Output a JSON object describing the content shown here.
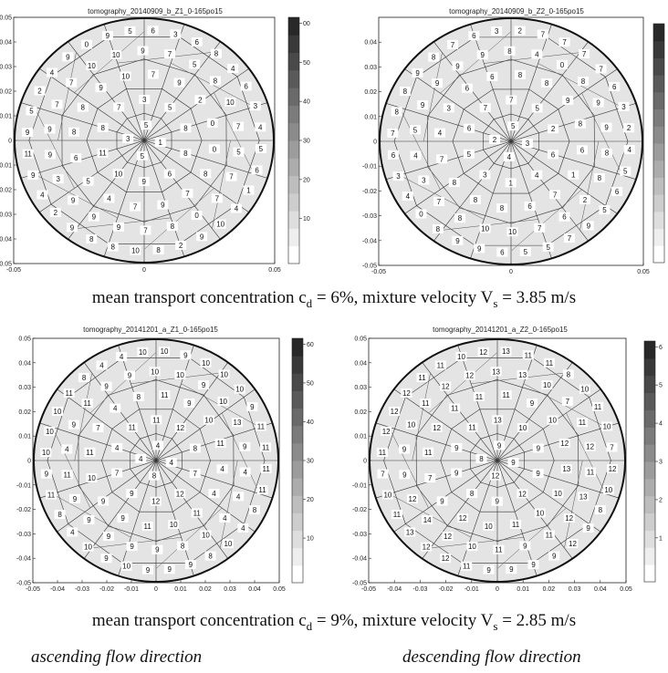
{
  "captions": {
    "row1_prefix": "mean transport concentration c",
    "row1_sub": "d",
    "row1_mid": " =  6%, mixture velocity V",
    "row1_sub2": "s",
    "row1_suffix": " = 3.85 m/s",
    "row2_prefix": "mean transport concentration c",
    "row2_sub": "d",
    "row2_mid": " =  9%, mixture velocity V",
    "row2_sub2": "s",
    "row2_suffix": " = 2.85 m/s"
  },
  "directions": {
    "left": "ascending flow direction",
    "right": "descending flow direction"
  },
  "chart_data": [
    {
      "type": "heatmap",
      "title": "tomography_20140909_b_Z1_0-165po15",
      "xlabel": "",
      "ylabel": "",
      "xlim": [
        -0.05,
        0.05
      ],
      "ylim": [
        -0.05,
        0.05
      ],
      "x_ticks": [
        "-0.05",
        "0",
        "0.05"
      ],
      "y_ticks": [
        "0.05",
        "0.04",
        "0.03",
        "0.02",
        "0.01",
        "0",
        "-0.01",
        "-0.02",
        "-0.03",
        "-0.04",
        "-0.05"
      ],
      "colorbar": {
        "range": [
          0,
          60
        ],
        "ticks": [
          "00",
          "50",
          "40",
          "30",
          "20",
          "10"
        ]
      },
      "cell_values": [
        1,
        5,
        3,
        5,
        8,
        6,
        9,
        10,
        11,
        8,
        7,
        3,
        5,
        8,
        8,
        7,
        9,
        7,
        4,
        5,
        6,
        8,
        8,
        9,
        10,
        7,
        9,
        2,
        0,
        0,
        7,
        0,
        8,
        7,
        9,
        9,
        9,
        3,
        9,
        9,
        7,
        7,
        10,
        10,
        9,
        7,
        5,
        8,
        10,
        7,
        5,
        7,
        10,
        9,
        2,
        8,
        10,
        8,
        8,
        9,
        2,
        4,
        9,
        11,
        9,
        5,
        2,
        4,
        9,
        0,
        9,
        5,
        6,
        3,
        6,
        8,
        4,
        6,
        3,
        4,
        5,
        6,
        1,
        4
      ]
    },
    {
      "type": "heatmap",
      "title": "tomography_20140909_b_Z2_0-165po15",
      "xlabel": "",
      "ylabel": "",
      "xlim": [
        -0.05,
        0.05
      ],
      "ylim": [
        -0.05,
        0.05
      ],
      "x_ticks": [
        "-0.05",
        "0",
        "0.05"
      ],
      "y_ticks": [
        "0.04",
        "0.03",
        "0.02",
        "0.01",
        "0",
        "-0.01",
        "-0.02",
        "-0.03",
        "-0.04",
        "-0.05"
      ],
      "colorbar": {
        "range": [
          0,
          60
        ],
        "ticks": []
      },
      "cell_values": [
        3,
        4,
        2,
        5,
        6,
        4,
        1,
        3,
        5,
        6,
        7,
        7,
        5,
        2,
        1,
        7,
        6,
        8,
        8,
        8,
        7,
        4,
        3,
        6,
        6,
        8,
        8,
        9,
        8,
        6,
        2,
        6,
        7,
        10,
        10,
        8,
        7,
        3,
        4,
        5,
        9,
        9,
        9,
        9,
        8,
        4,
        0,
        8,
        9,
        9,
        8,
        8,
        9,
        7,
        5,
        5,
        6,
        9,
        9,
        8,
        0,
        4,
        3,
        6,
        7,
        8,
        8,
        9,
        8,
        7,
        6,
        3,
        2,
        7,
        7,
        7,
        7,
        6,
        3,
        2,
        4,
        5,
        6,
        5,
        4,
        3,
        3,
        3
      ]
    },
    {
      "type": "heatmap",
      "title": "tomography_20141201_a_Z1_0-165po15",
      "xlabel": "",
      "ylabel": "",
      "xlim": [
        -0.05,
        0.05
      ],
      "ylim": [
        -0.05,
        0.05
      ],
      "x_ticks": [
        "-0.05",
        "-0.04",
        "-0.03",
        "-0.02",
        "-0.01",
        "0",
        "0.01",
        "0.02",
        "0.03",
        "0.04",
        "0.05"
      ],
      "y_ticks": [
        "0.05",
        "0.04",
        "0.03",
        "0.02",
        "0.01",
        "0",
        "-0.01",
        "-0.02",
        "-0.03",
        "-0.04",
        "-0.05"
      ],
      "colorbar": {
        "range": [
          0,
          60
        ],
        "ticks": [
          "60",
          "50",
          "40",
          "30",
          "20",
          "10"
        ]
      },
      "cell_values": [
        4,
        8,
        4,
        4,
        7,
        12,
        12,
        9,
        7,
        4,
        11,
        11,
        12,
        8,
        4,
        11,
        10,
        11,
        9,
        9,
        10,
        11,
        7,
        4,
        8,
        11,
        9,
        10,
        11,
        4,
        4,
        10,
        8,
        9,
        9,
        9,
        9,
        9,
        11,
        4,
        9,
        11,
        9,
        9,
        10,
        10,
        9,
        10,
        13,
        9,
        4,
        4,
        10,
        8,
        9,
        9,
        9,
        10,
        9,
        10,
        4,
        8,
        11,
        9,
        10,
        10,
        10,
        11,
        8,
        4,
        4,
        10,
        10,
        9,
        10,
        10,
        10,
        9,
        11,
        11,
        11,
        11,
        8,
        4,
        4,
        7,
        7,
        4,
        4,
        4,
        7,
        4
      ]
    },
    {
      "type": "heatmap",
      "title": "tomography_20141201_a_Z2_0-165po15",
      "xlabel": "",
      "ylabel": "",
      "xlim": [
        -0.05,
        0.05
      ],
      "ylim": [
        -0.05,
        0.05
      ],
      "x_ticks": [
        "-0.05",
        "-0.04",
        "-0.03",
        "-0.02",
        "-0.01",
        "0",
        "0.01",
        "0.02",
        "0.03",
        "0.04",
        "0.05"
      ],
      "y_ticks": [
        "0.05",
        "0.04",
        "0.03",
        "0.02",
        "0.01",
        "0",
        "-0.01",
        "-0.02",
        "-0.03",
        "-0.04",
        "-0.05"
      ],
      "colorbar": {
        "range": [
          0,
          60
        ],
        "ticks": [
          "6",
          "5",
          "4",
          "3",
          "2",
          "1"
        ]
      },
      "cell_values": [
        9,
        12,
        8,
        9,
        9,
        12,
        9,
        8,
        9,
        9,
        11,
        13,
        10,
        9,
        10,
        10,
        11,
        10,
        12,
        9,
        7,
        11,
        12,
        11,
        11,
        11,
        9,
        10,
        12,
        13,
        12,
        11,
        9,
        11,
        10,
        12,
        14,
        12,
        9,
        9,
        10,
        11,
        12,
        12,
        13,
        13,
        10,
        7,
        11,
        12,
        11,
        13,
        12,
        9,
        9,
        9,
        9,
        11,
        12,
        12,
        13,
        11,
        10,
        7,
        11,
        12,
        12,
        12,
        11,
        11,
        10,
        12,
        13,
        11,
        11,
        8,
        10,
        11,
        10,
        7,
        12,
        10,
        8,
        9,
        9,
        11,
        10,
        12,
        7
      ]
    }
  ]
}
